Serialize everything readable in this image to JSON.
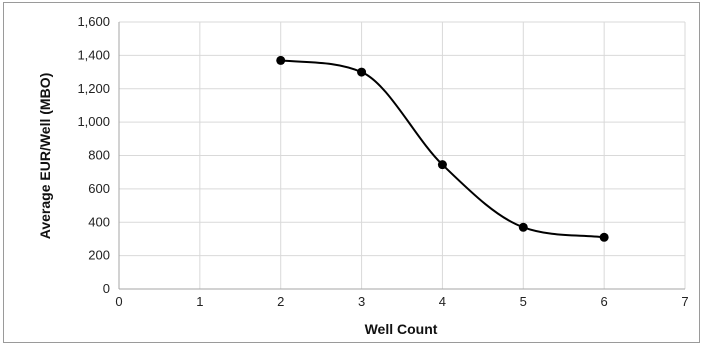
{
  "chart_data": {
    "type": "scatter",
    "title": "",
    "xlabel": "Well Count",
    "ylabel": "Average EUR/Well (MBO)",
    "xlim": [
      0,
      7
    ],
    "ylim": [
      0,
      1600
    ],
    "xticks": [
      0,
      1,
      2,
      3,
      4,
      5,
      6,
      7
    ],
    "yticks": [
      0,
      200,
      400,
      600,
      800,
      1000,
      1200,
      1400,
      1600
    ],
    "ytick_labels": [
      "0",
      "200",
      "400",
      "600",
      "800",
      "1,000",
      "1,200",
      "1,400",
      "1,600"
    ],
    "grid": true,
    "smooth_line": true,
    "legend": "none",
    "series": [
      {
        "x": [
          2,
          3,
          4,
          5,
          6
        ],
        "y": [
          1370,
          1300,
          745,
          370,
          310
        ],
        "color": "#000000"
      }
    ]
  }
}
